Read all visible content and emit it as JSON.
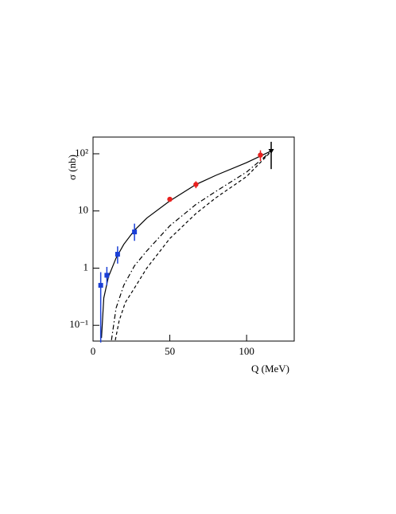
{
  "chart_data": {
    "type": "scatter",
    "xlabel": "Q (MeV)",
    "ylabel": "σ (nb)",
    "xlim": [
      0,
      131
    ],
    "xticks": [
      0,
      50,
      100
    ],
    "ylim": [
      0.053,
      196
    ],
    "ylog": true,
    "yticks": [
      {
        "value": 0.1,
        "label": "10⁻¹"
      },
      1,
      10,
      {
        "value": 100,
        "label": "10²"
      }
    ],
    "curves": [
      {
        "style": "solid",
        "color": "#000000",
        "x": [
          5.5,
          7,
          10,
          15,
          20,
          27,
          35,
          50,
          67,
          80,
          100,
          116
        ],
        "values": [
          0.06,
          0.3,
          0.7,
          1.5,
          2.6,
          4.6,
          7.5,
          15,
          29,
          42,
          70,
          112
        ]
      },
      {
        "style": "dashdot",
        "color": "#000000",
        "x": [
          12,
          15,
          20,
          27,
          35,
          50,
          67,
          80,
          100,
          116
        ],
        "values": [
          0.055,
          0.2,
          0.5,
          1.1,
          2.0,
          5.5,
          13,
          22,
          48,
          110
        ]
      },
      {
        "style": "dashed",
        "color": "#000000",
        "x": [
          14.5,
          17,
          21,
          27,
          35,
          50,
          67,
          80,
          100,
          116
        ],
        "values": [
          0.055,
          0.12,
          0.25,
          0.45,
          1.0,
          3.3,
          9,
          17,
          40,
          110
        ]
      }
    ],
    "series": [
      {
        "marker": "square",
        "color": "#1a3fd6",
        "x": [
          5,
          9,
          16,
          27
        ],
        "values": [
          0.5,
          0.75,
          1.75,
          4.3
        ],
        "err_low": [
          0.05,
          0.5,
          1.2,
          3
        ],
        "err_high": [
          0.85,
          1.05,
          2.4,
          6
        ]
      },
      {
        "marker": "circle",
        "color": "#e8201e",
        "x": [
          50,
          67,
          109
        ],
        "values": [
          16,
          29,
          95
        ],
        "err_low": [
          14.5,
          25,
          75
        ],
        "err_high": [
          17.5,
          33,
          115
        ]
      },
      {
        "marker": "triangle",
        "color": "#000000",
        "x": [
          116
        ],
        "values": [
          110
        ],
        "err_low": [
          54
        ],
        "err_high": [
          162
        ]
      }
    ]
  }
}
